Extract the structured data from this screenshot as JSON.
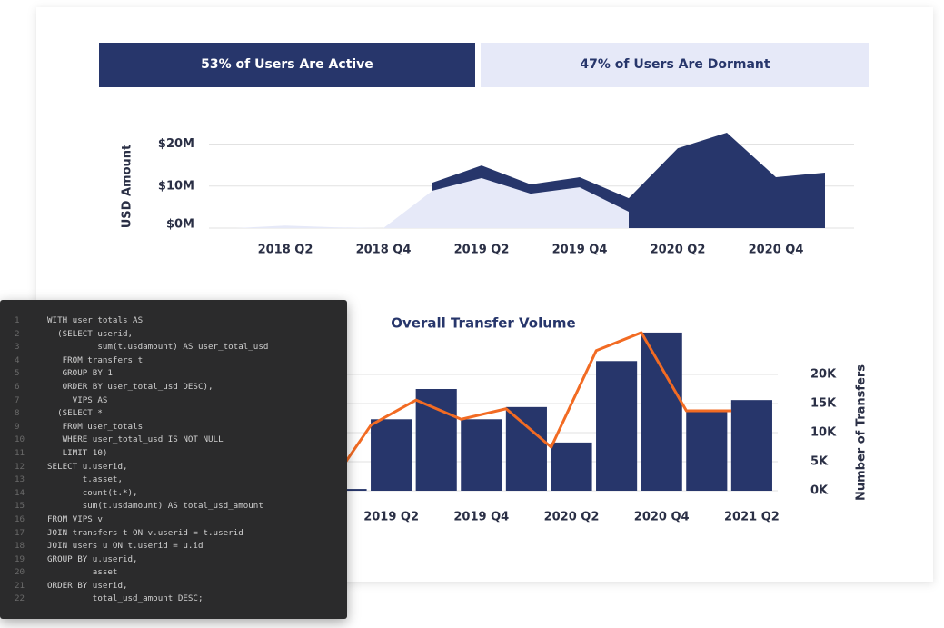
{
  "banner": {
    "active": "53% of Users Are Active",
    "dormant": "47% of Users Are Dormant"
  },
  "chart_data": [
    {
      "type": "area",
      "ylabel": "USD Amount",
      "categories": [
        null,
        "2018 Q2",
        null,
        "2018 Q4",
        null,
        "2019 Q2",
        null,
        "2019 Q4",
        null,
        "2020 Q2",
        null,
        "2020 Q4",
        null
      ],
      "series": [
        {
          "color": "#27366b",
          "values": [
            null,
            null,
            null,
            null,
            10.8,
            14.9,
            10.4,
            12.1,
            7.1,
            19.0,
            22.7,
            12.1,
            13.2
          ]
        },
        {
          "color": "#e6e9f8",
          "values": [
            0,
            0.6,
            0.2,
            0,
            8.9,
            11.9,
            8.2,
            9.7,
            3.9,
            null,
            null,
            null,
            null
          ]
        }
      ],
      "ylim": [
        0,
        24
      ],
      "yticks": [
        {
          "value": 0,
          "label": "$0M"
        },
        {
          "value": 10,
          "label": "$10M"
        },
        {
          "value": 20,
          "label": "$20M"
        }
      ],
      "grid": true
    },
    {
      "type": "bar",
      "title": "Overall Transfer Volume",
      "ylabel": "Number of Transfers",
      "y_axis_position": "right",
      "categories": [
        null,
        "2019 Q2",
        null,
        "2019 Q4",
        null,
        "2020 Q2",
        null,
        "2020 Q4",
        null,
        "2021 Q2"
      ],
      "series": [
        {
          "type": "bar",
          "color": "#27366b",
          "values": [
            0.3,
            12.3,
            17.5,
            12.3,
            14.4,
            8.3,
            22.3,
            27.2,
            13.6,
            15.6
          ]
        },
        {
          "type": "line",
          "color": "#f26b23",
          "values": [
            0,
            11.3,
            15.6,
            12.3,
            14.1,
            7.5,
            24.1,
            27.2,
            13.75,
            13.75
          ]
        }
      ],
      "ylim": [
        0,
        28
      ],
      "yticks": [
        {
          "value": 0,
          "label": "0K"
        },
        {
          "value": 5,
          "label": "5K"
        },
        {
          "value": 10,
          "label": "10K"
        },
        {
          "value": 15,
          "label": "15K"
        },
        {
          "value": 20,
          "label": "20K"
        }
      ],
      "grid": true
    }
  ],
  "code": {
    "line_numbers": [
      1,
      2,
      3,
      4,
      5,
      6,
      7,
      8,
      9,
      10,
      11,
      12,
      13,
      14,
      15,
      16,
      17,
      18,
      19,
      20,
      21,
      22
    ],
    "lines": [
      "WITH user_totals AS",
      "  (SELECT userid,",
      "          sum(t.usdamount) AS user_total_usd",
      "   FROM transfers t",
      "   GROUP BY 1",
      "   ORDER BY user_total_usd DESC),",
      "     VIPS AS",
      "  (SELECT *",
      "   FROM user_totals",
      "   WHERE user_total_usd IS NOT NULL",
      "   LIMIT 10)",
      "SELECT u.userid,",
      "       t.asset,",
      "       count(t.*),",
      "       sum(t.usdamount) AS total_usd_amount",
      "FROM VIPS v",
      "JOIN transfers t ON v.userid = t.userid",
      "JOIN users u ON t.userid = u.id",
      "GROUP BY u.userid,",
      "         asset",
      "ORDER BY userid,",
      "         total_usd_amount DESC;"
    ]
  }
}
